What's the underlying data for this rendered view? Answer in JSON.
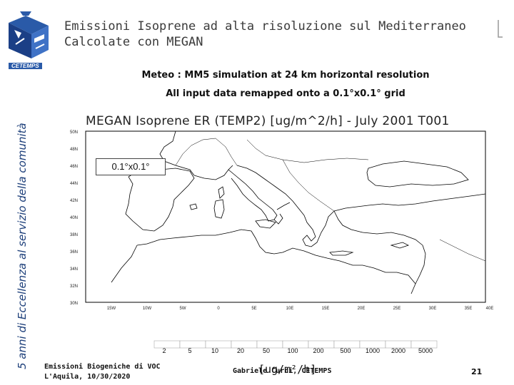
{
  "slide": {
    "title_line1": "Emissioni Isoprene ad alta risoluzione sul Mediterraneo",
    "title_line2": "Calcolate con MEGAN",
    "logo_caption": "CETEMPS",
    "vertical_banner": "5 anni di Eccellenza al servizio della comunità",
    "subtitle_line1": "Meteo : MM5 simulation at 24 km horizontal resolution",
    "subtitle_line2": "All input data remapped onto a 0.1°x0.1° grid"
  },
  "map": {
    "title": "MEGAN Isoprene ER (TEMP2) [ug/m^2/h] - July 2001 T001",
    "grid_label": "0.1°x0.1°",
    "lat_labels": [
      "50N",
      "48N",
      "46N",
      "44N",
      "42N",
      "40N",
      "38N",
      "36N",
      "34N",
      "32N",
      "30N"
    ],
    "lon_labels": [
      "15W",
      "10W",
      "5W",
      "0",
      "5E",
      "10E",
      "15E",
      "20E",
      "25E",
      "30E",
      "35E",
      "40E"
    ]
  },
  "colorbar": {
    "ticks": [
      "2",
      "5",
      "10",
      "20",
      "50",
      "100",
      "200",
      "500",
      "1000",
      "2000",
      "5000"
    ]
  },
  "footer": {
    "left_line1": "Emissioni Biogeniche di VOC",
    "left_line2": "L'Aquila, 10/30/2020",
    "author": "Gabriele Curci, CETEMPS",
    "unit_overlay": "[ug/m²/h]",
    "page": "21"
  },
  "colors": {
    "accent_blue": "#2a5aa8",
    "coastline": "#000000"
  }
}
